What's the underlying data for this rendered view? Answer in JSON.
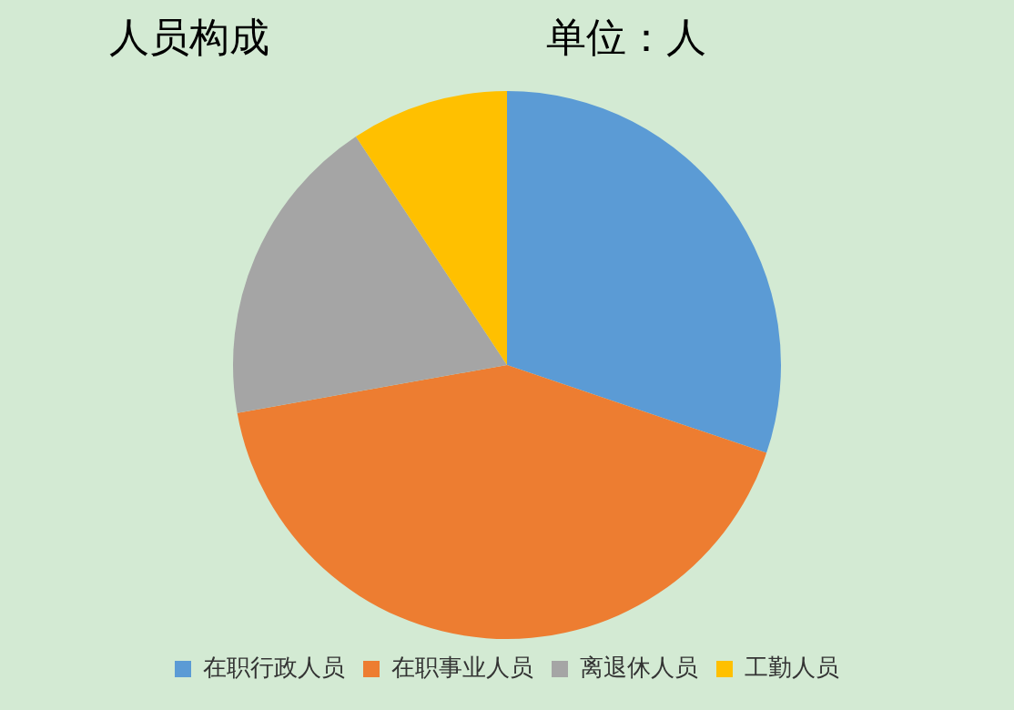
{
  "chart_data": {
    "type": "pie",
    "title": "人员构成",
    "subtitle": "单位：人",
    "categories": [
      "在职行政人员",
      "在职事业人员",
      "离退休人员",
      "工勤人员"
    ],
    "values": [
      30.2,
      42,
      18.5,
      9.3
    ],
    "colors": [
      "#5b9bd5",
      "#ed7d31",
      "#a5a5a5",
      "#ffc000"
    ],
    "legend": "bottom"
  }
}
